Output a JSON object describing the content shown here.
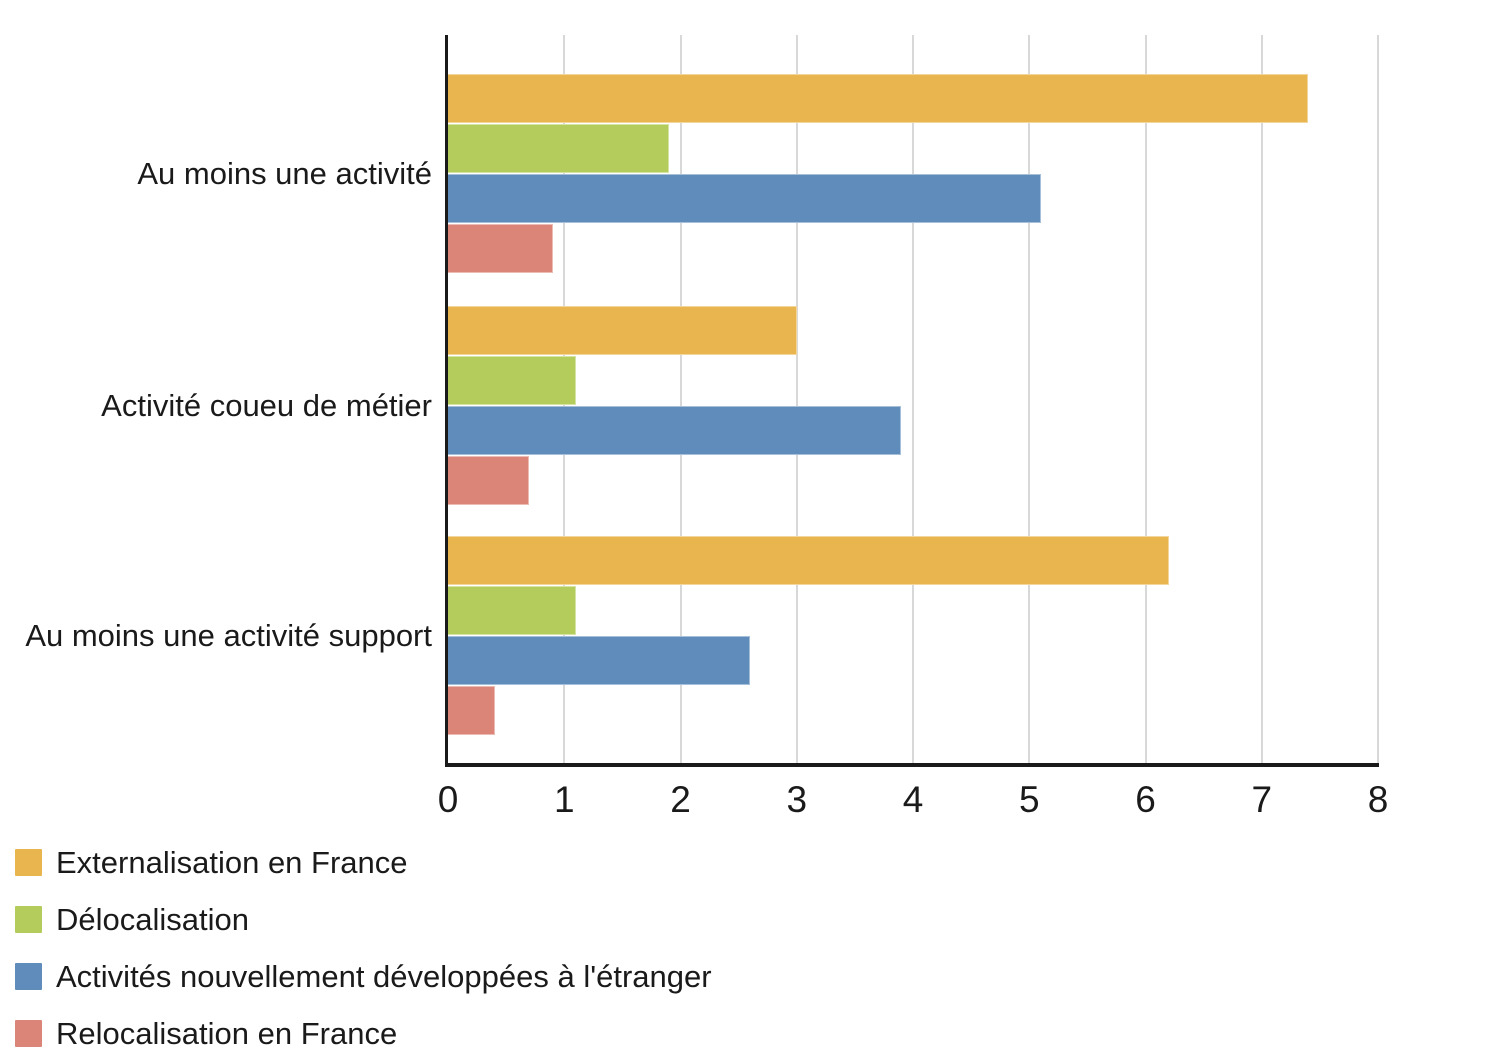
{
  "chart_data": {
    "type": "bar",
    "orientation": "horizontal",
    "title": "",
    "xlabel": "",
    "ylabel": "",
    "categories": [
      "Au moins une activité",
      "Activité coueu de métier",
      "Au moins une activité support"
    ],
    "series": [
      {
        "name": "Externalisation en France",
        "color": "#e9b54e",
        "values": [
          7.4,
          3.0,
          6.2
        ]
      },
      {
        "name": "Délocalisation",
        "color": "#b3cc5c",
        "values": [
          1.9,
          1.1,
          1.1
        ]
      },
      {
        "name": "Activités nouvellement développées à l'étranger",
        "color": "#5f8cba",
        "values": [
          5.1,
          3.9,
          2.6
        ]
      },
      {
        "name": "Relocalisation en France",
        "color": "#da8578",
        "values": [
          0.9,
          0.7,
          0.4
        ]
      }
    ],
    "xlim": [
      0,
      8
    ],
    "xticks": [
      "0",
      "1",
      "2",
      "3",
      "4",
      "5",
      "6",
      "7",
      "8"
    ],
    "grid": "vertical-gridlines-on",
    "legend_position": "bottom-left",
    "axis_color": "#1a1a1a",
    "gridline_color": "#d8d8d8",
    "background_color": "#ffffff"
  }
}
